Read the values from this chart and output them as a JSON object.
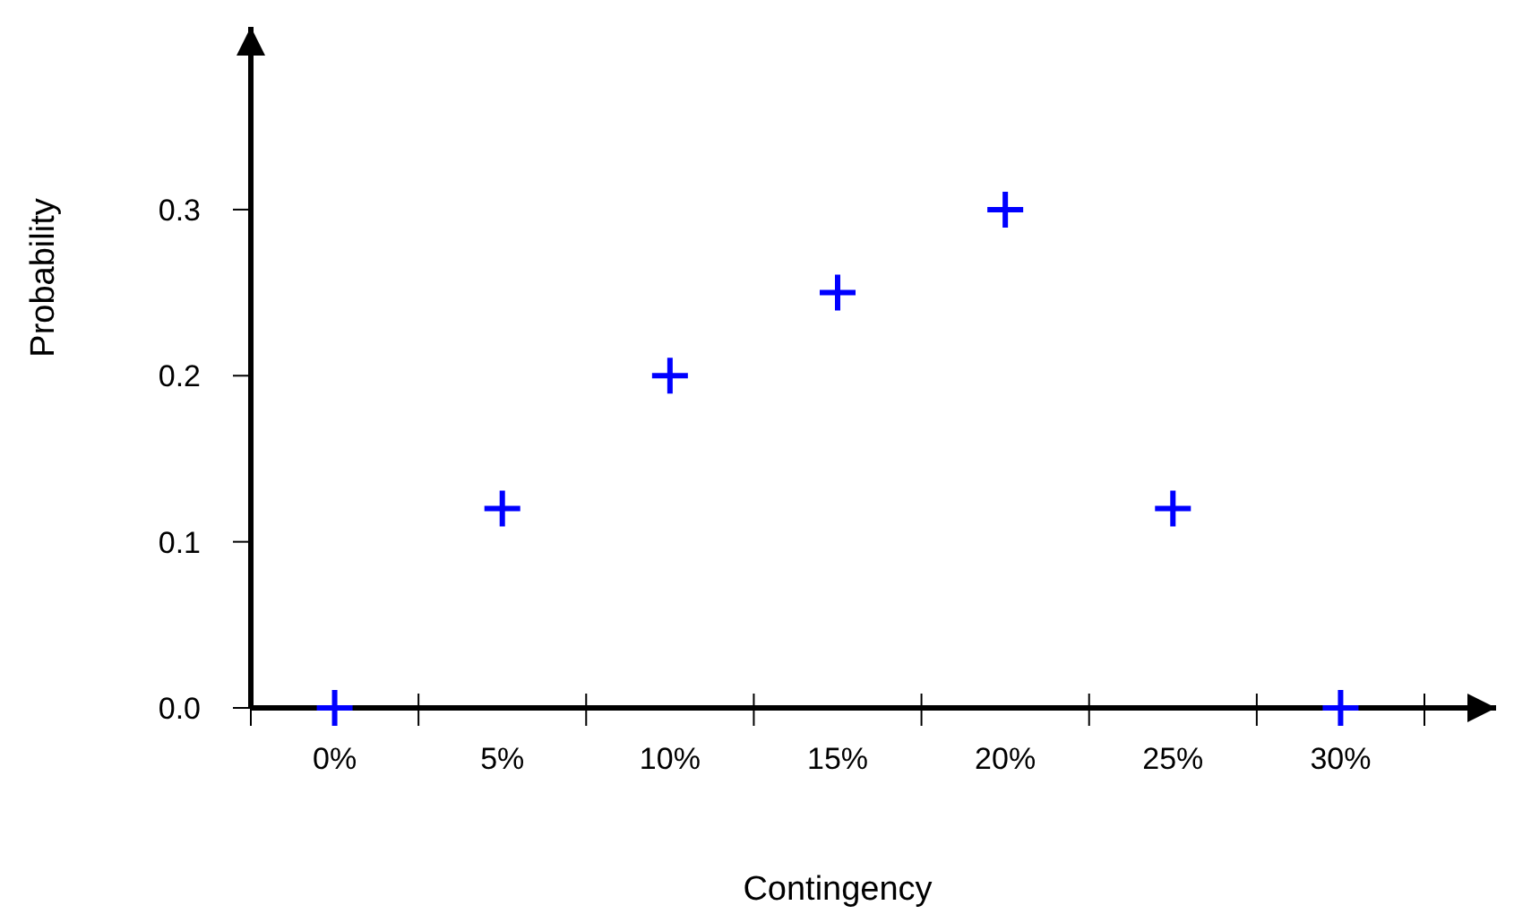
{
  "chart_data": {
    "type": "scatter",
    "xlabel": "Contingency",
    "ylabel": "Probability",
    "categories": [
      "0%",
      "5%",
      "10%",
      "15%",
      "20%",
      "25%",
      "30%"
    ],
    "series": [
      {
        "color": "#0000ff",
        "values": [
          0,
          0.12,
          0.2,
          0.25,
          0.3,
          0.12,
          0
        ]
      }
    ],
    "ylim": [
      0,
      0.41
    ],
    "yticks": [
      {
        "value": 0,
        "label": "0.0"
      },
      {
        "value": 0.1,
        "label": "0.1"
      },
      {
        "value": 0.2,
        "label": "0.2"
      },
      {
        "value": 0.3,
        "label": "0.3"
      }
    ],
    "marker": "cross",
    "grid": false
  }
}
